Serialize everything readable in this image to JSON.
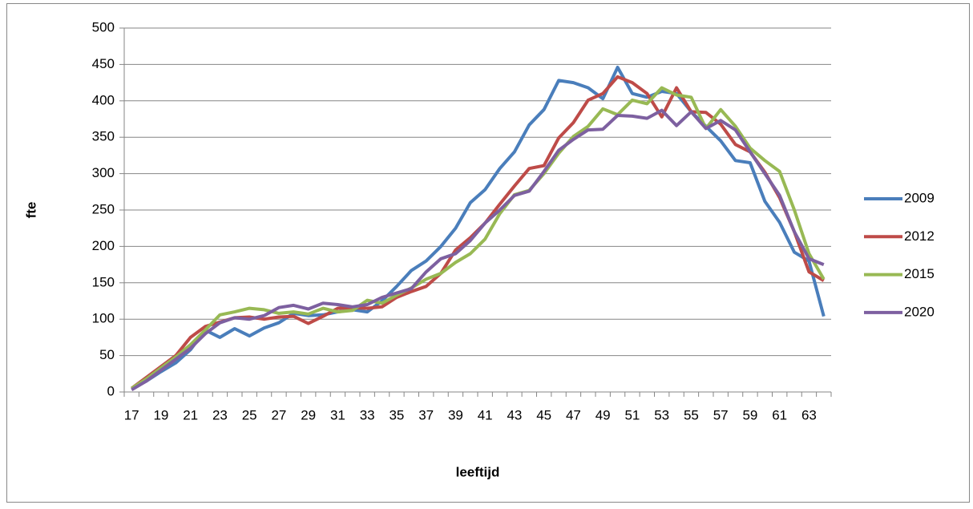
{
  "chart_data": {
    "type": "line",
    "x_label": "leeftijd",
    "y_label": "fte",
    "categories": [
      17,
      null,
      19,
      null,
      21,
      null,
      23,
      null,
      25,
      null,
      27,
      null,
      29,
      null,
      31,
      null,
      33,
      null,
      35,
      null,
      37,
      null,
      39,
      null,
      41,
      null,
      43,
      null,
      45,
      null,
      47,
      null,
      49,
      null,
      51,
      null,
      53,
      null,
      55,
      null,
      57,
      null,
      59,
      null,
      61,
      null,
      63,
      null
    ],
    "series": [
      {
        "name": "2009",
        "color": "#4a7ebb",
        "values": [
          5,
          15,
          28,
          40,
          58,
          85,
          75,
          87,
          77,
          88,
          95,
          108,
          105,
          106,
          110,
          113,
          110,
          125,
          145,
          167,
          180,
          200,
          225,
          260,
          278,
          307,
          330,
          367,
          388,
          428,
          425,
          418,
          403,
          446,
          410,
          405,
          413,
          410,
          385,
          365,
          345,
          318,
          315,
          262,
          233,
          192,
          180,
          104
        ]
      },
      {
        "name": "2012",
        "color": "#be4b48",
        "values": [
          5,
          20,
          35,
          50,
          75,
          90,
          96,
          102,
          103,
          100,
          103,
          104,
          94,
          104,
          115,
          116,
          115,
          117,
          130,
          138,
          145,
          163,
          195,
          212,
          232,
          258,
          283,
          307,
          311,
          349,
          370,
          401,
          410,
          433,
          425,
          410,
          378,
          418,
          385,
          384,
          368,
          340,
          330,
          302,
          267,
          220,
          165,
          153
        ]
      },
      {
        "name": "2015",
        "color": "#98b954",
        "values": [
          5,
          18,
          33,
          48,
          65,
          85,
          106,
          110,
          115,
          113,
          108,
          110,
          107,
          115,
          110,
          112,
          126,
          122,
          133,
          143,
          155,
          163,
          178,
          190,
          210,
          245,
          271,
          277,
          300,
          328,
          351,
          365,
          389,
          381,
          401,
          396,
          418,
          408,
          405,
          362,
          388,
          365,
          335,
          318,
          303,
          250,
          190,
          155
        ]
      },
      {
        "name": "2020",
        "color": "#7d60a0",
        "values": [
          3,
          15,
          30,
          45,
          60,
          80,
          95,
          102,
          100,
          105,
          116,
          119,
          114,
          122,
          120,
          117,
          120,
          130,
          136,
          142,
          165,
          183,
          190,
          208,
          232,
          250,
          270,
          276,
          303,
          332,
          347,
          360,
          361,
          380,
          379,
          376,
          387,
          366,
          385,
          362,
          373,
          360,
          330,
          300,
          270,
          220,
          183,
          175
        ]
      }
    ],
    "ylim": [
      0,
      500
    ],
    "yticks": [
      0,
      50,
      100,
      150,
      200,
      250,
      300,
      350,
      400,
      450,
      500
    ],
    "grid": true,
    "legend": "right"
  }
}
